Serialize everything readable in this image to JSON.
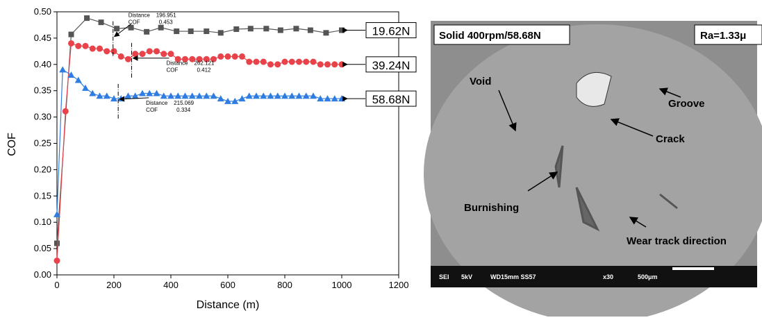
{
  "chart_data": {
    "type": "line",
    "xlabel": "Distance (m)",
    "ylabel": "COF",
    "xlim": [
      0,
      1200
    ],
    "xticks": [
      0,
      200,
      400,
      600,
      800,
      1000,
      1200
    ],
    "ylim": [
      0,
      0.5
    ],
    "yticks": [
      {
        "value": 0,
        "label": "0.00"
      },
      {
        "value": 0.05,
        "label": "0.05"
      },
      {
        "value": 0.1,
        "label": "0.10"
      },
      {
        "value": 0.15,
        "label": "0.15"
      },
      {
        "value": 0.2,
        "label": "0.20"
      },
      {
        "value": 0.25,
        "label": "0.25"
      },
      {
        "value": 0.3,
        "label": "0.30"
      },
      {
        "value": 0.35,
        "label": "0.35"
      },
      {
        "value": 0.4,
        "label": "0.40"
      },
      {
        "value": 0.45,
        "label": "0.45"
      },
      {
        "value": 0.5,
        "label": "0.50"
      }
    ],
    "series": [
      {
        "name": "19.62N",
        "color": "#555555",
        "marker": "square",
        "x": [
          0,
          50,
          105,
          155,
          210,
          260,
          315,
          365,
          420,
          470,
          525,
          575,
          630,
          680,
          735,
          785,
          840,
          890,
          945,
          1000
        ],
        "values": [
          0.06,
          0.457,
          0.488,
          0.48,
          0.468,
          0.47,
          0.462,
          0.47,
          0.463,
          0.463,
          0.463,
          0.46,
          0.467,
          0.468,
          0.468,
          0.465,
          0.468,
          0.465,
          0.46,
          0.465
        ]
      },
      {
        "name": "39.24N",
        "color": "#e8434a",
        "marker": "circle",
        "x": [
          0,
          30,
          50,
          75,
          100,
          125,
          150,
          175,
          200,
          225,
          250,
          275,
          300,
          325,
          350,
          375,
          400,
          425,
          450,
          475,
          500,
          525,
          550,
          575,
          600,
          625,
          650,
          675,
          700,
          725,
          750,
          775,
          800,
          825,
          850,
          875,
          900,
          925,
          950,
          975,
          1000
        ],
        "values": [
          0.027,
          0.311,
          0.44,
          0.435,
          0.435,
          0.43,
          0.43,
          0.425,
          0.425,
          0.415,
          0.41,
          0.42,
          0.42,
          0.425,
          0.425,
          0.42,
          0.42,
          0.41,
          0.41,
          0.41,
          0.41,
          0.41,
          0.41,
          0.415,
          0.415,
          0.415,
          0.415,
          0.405,
          0.405,
          0.405,
          0.4,
          0.4,
          0.405,
          0.405,
          0.405,
          0.405,
          0.405,
          0.4,
          0.4,
          0.4,
          0.4
        ]
      },
      {
        "name": "58.68N",
        "color": "#2f7de0",
        "marker": "triangle",
        "x": [
          0,
          20,
          50,
          75,
          100,
          125,
          150,
          175,
          200,
          225,
          250,
          275,
          300,
          325,
          350,
          375,
          400,
          425,
          450,
          475,
          500,
          525,
          550,
          575,
          600,
          625,
          650,
          675,
          700,
          725,
          750,
          775,
          800,
          825,
          850,
          875,
          900,
          925,
          950,
          975,
          1000
        ],
        "values": [
          0.115,
          0.39,
          0.38,
          0.37,
          0.355,
          0.345,
          0.34,
          0.34,
          0.335,
          0.335,
          0.34,
          0.34,
          0.345,
          0.345,
          0.345,
          0.34,
          0.34,
          0.34,
          0.34,
          0.34,
          0.34,
          0.34,
          0.34,
          0.335,
          0.33,
          0.33,
          0.335,
          0.34,
          0.34,
          0.34,
          0.34,
          0.34,
          0.34,
          0.34,
          0.34,
          0.34,
          0.34,
          0.335,
          0.335,
          0.335,
          0.335
        ]
      }
    ],
    "annotations": [
      {
        "x_label": "Distance",
        "x": 196.951,
        "y_label": "COF",
        "y": 0.453
      },
      {
        "x_label": "Distance",
        "x": 262.121,
        "y_label": "COF",
        "y": 0.412
      },
      {
        "x_label": "Distance",
        "x": 215.069,
        "y_label": "COF",
        "y": 0.334
      }
    ]
  },
  "micrograph": {
    "title": "Solid 400rpm/58.68N",
    "roughness": "Ra=1.33μ",
    "labels": [
      "Void",
      "Groove",
      "Crack",
      "Burnishing",
      "Wear track direction"
    ],
    "footer": [
      "SEI",
      "5kV",
      "WD15mm SS57",
      "x30",
      "500μm"
    ]
  }
}
